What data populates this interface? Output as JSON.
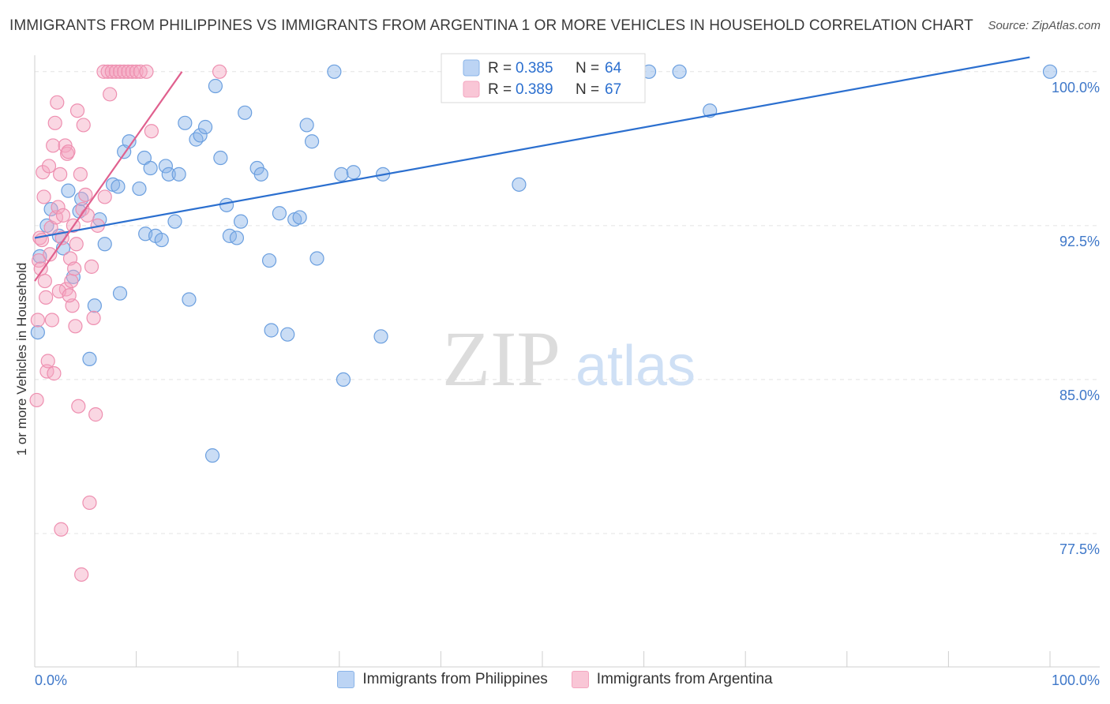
{
  "chart_data": {
    "type": "scatter",
    "title": "IMMIGRANTS FROM PHILIPPINES VS IMMIGRANTS FROM ARGENTINA 1 OR MORE VEHICLES IN HOUSEHOLD CORRELATION CHART",
    "source": "Source: ZipAtlas.com",
    "xlabel": "",
    "ylabel": "1 or more Vehicles in Household",
    "xlim": [
      0,
      100
    ],
    "ylim": [
      71.0,
      100.8
    ],
    "x_tick_labels": [
      "0.0%",
      "100.0%"
    ],
    "y_ticks": [
      {
        "value": 100.0,
        "label": "100.0%"
      },
      {
        "value": 92.5,
        "label": "92.5%"
      },
      {
        "value": 85.0,
        "label": "85.0%"
      },
      {
        "value": 77.5,
        "label": "77.5%"
      }
    ],
    "watermark": {
      "zip": "ZIP",
      "atlas": "atlas"
    },
    "stats": [
      {
        "r_label": "R =",
        "r_value": "0.385",
        "n_label": "N =",
        "n_value": "64"
      },
      {
        "r_label": "R =",
        "r_value": "0.389",
        "n_label": "N =",
        "n_value": "67"
      }
    ],
    "series": [
      {
        "name": "Immigrants from Philippines",
        "color": "#8ab4e8",
        "stroke": "#6b9fdf",
        "line_color": "#2b6fcf",
        "trend": {
          "x": [
            0,
            98
          ],
          "y": [
            91.9,
            100.7
          ]
        },
        "points": [
          [
            0.3,
            87.3
          ],
          [
            1.2,
            92.5
          ],
          [
            1.6,
            93.3
          ],
          [
            2.4,
            92.0
          ],
          [
            2.8,
            91.4
          ],
          [
            3.3,
            94.2
          ],
          [
            3.8,
            90.0
          ],
          [
            4.4,
            93.2
          ],
          [
            4.6,
            93.8
          ],
          [
            5.4,
            86.0
          ],
          [
            5.9,
            88.6
          ],
          [
            6.4,
            92.8
          ],
          [
            6.9,
            91.6
          ],
          [
            7.7,
            94.5
          ],
          [
            8.2,
            94.4
          ],
          [
            8.4,
            89.2
          ],
          [
            8.8,
            96.1
          ],
          [
            9.3,
            96.6
          ],
          [
            10.3,
            94.3
          ],
          [
            10.8,
            95.8
          ],
          [
            10.9,
            92.1
          ],
          [
            11.4,
            95.3
          ],
          [
            11.9,
            92.0
          ],
          [
            12.5,
            91.8
          ],
          [
            12.9,
            95.4
          ],
          [
            13.2,
            95.0
          ],
          [
            13.8,
            92.7
          ],
          [
            14.2,
            95.0
          ],
          [
            14.8,
            97.5
          ],
          [
            15.2,
            88.9
          ],
          [
            15.9,
            96.7
          ],
          [
            16.3,
            96.9
          ],
          [
            16.8,
            97.3
          ],
          [
            17.5,
            81.3
          ],
          [
            17.8,
            99.3
          ],
          [
            18.3,
            95.8
          ],
          [
            18.9,
            93.5
          ],
          [
            19.2,
            92.0
          ],
          [
            19.9,
            91.9
          ],
          [
            20.3,
            92.7
          ],
          [
            20.7,
            98.0
          ],
          [
            21.9,
            95.3
          ],
          [
            22.3,
            95.0
          ],
          [
            23.1,
            90.8
          ],
          [
            23.3,
            87.4
          ],
          [
            24.1,
            93.1
          ],
          [
            24.9,
            87.2
          ],
          [
            25.6,
            92.8
          ],
          [
            26.1,
            92.9
          ],
          [
            26.8,
            97.4
          ],
          [
            27.3,
            96.6
          ],
          [
            27.8,
            90.9
          ],
          [
            29.5,
            100.0
          ],
          [
            30.2,
            95.0
          ],
          [
            30.4,
            85.0
          ],
          [
            31.4,
            95.1
          ],
          [
            34.1,
            87.1
          ],
          [
            34.3,
            95.0
          ],
          [
            47.7,
            94.5
          ],
          [
            60.5,
            100.0
          ],
          [
            63.5,
            100.0
          ],
          [
            66.5,
            98.1
          ],
          [
            100.0,
            100.0
          ],
          [
            0.5,
            91.0
          ]
        ]
      },
      {
        "name": "Immigrants from Argentina",
        "color": "#f4a6c0",
        "stroke": "#ee8fb0",
        "line_color": "#e0608e",
        "trend": {
          "x": [
            0,
            14.5
          ],
          "y": [
            89.8,
            100.0
          ]
        },
        "points": [
          [
            0.2,
            84.0
          ],
          [
            0.3,
            87.9
          ],
          [
            0.4,
            90.8
          ],
          [
            0.5,
            91.9
          ],
          [
            0.6,
            90.4
          ],
          [
            0.8,
            95.1
          ],
          [
            0.9,
            93.9
          ],
          [
            1.0,
            89.8
          ],
          [
            1.1,
            89.0
          ],
          [
            1.2,
            85.4
          ],
          [
            1.3,
            85.9
          ],
          [
            1.4,
            95.4
          ],
          [
            1.6,
            92.4
          ],
          [
            1.7,
            87.9
          ],
          [
            1.8,
            96.4
          ],
          [
            1.9,
            85.3
          ],
          [
            2.0,
            97.5
          ],
          [
            2.1,
            92.9
          ],
          [
            2.2,
            98.5
          ],
          [
            2.3,
            93.4
          ],
          [
            2.5,
            95.0
          ],
          [
            2.6,
            77.7
          ],
          [
            2.7,
            91.9
          ],
          [
            2.8,
            93.0
          ],
          [
            3.0,
            96.4
          ],
          [
            3.1,
            89.4
          ],
          [
            3.2,
            96.0
          ],
          [
            3.3,
            96.1
          ],
          [
            3.5,
            90.9
          ],
          [
            3.6,
            89.8
          ],
          [
            3.7,
            88.6
          ],
          [
            3.8,
            92.5
          ],
          [
            3.9,
            90.4
          ],
          [
            4.0,
            87.6
          ],
          [
            4.1,
            91.6
          ],
          [
            4.2,
            98.1
          ],
          [
            4.3,
            83.7
          ],
          [
            4.5,
            95.0
          ],
          [
            4.6,
            75.5
          ],
          [
            4.7,
            93.3
          ],
          [
            4.8,
            97.4
          ],
          [
            5.0,
            94.0
          ],
          [
            5.2,
            93.0
          ],
          [
            5.4,
            79.0
          ],
          [
            5.6,
            90.5
          ],
          [
            5.8,
            88.0
          ],
          [
            6.0,
            83.3
          ],
          [
            6.2,
            92.5
          ],
          [
            6.8,
            100.0
          ],
          [
            6.9,
            93.9
          ],
          [
            7.2,
            100.0
          ],
          [
            7.4,
            98.9
          ],
          [
            7.6,
            100.0
          ],
          [
            8.0,
            100.0
          ],
          [
            8.4,
            100.0
          ],
          [
            8.8,
            100.0
          ],
          [
            9.2,
            100.0
          ],
          [
            9.6,
            100.0
          ],
          [
            10.0,
            100.0
          ],
          [
            10.4,
            100.0
          ],
          [
            11.0,
            100.0
          ],
          [
            11.5,
            97.1
          ],
          [
            18.2,
            100.0
          ],
          [
            1.5,
            91.1
          ],
          [
            2.4,
            89.3
          ],
          [
            3.4,
            89.1
          ],
          [
            0.7,
            91.8
          ]
        ]
      }
    ]
  }
}
